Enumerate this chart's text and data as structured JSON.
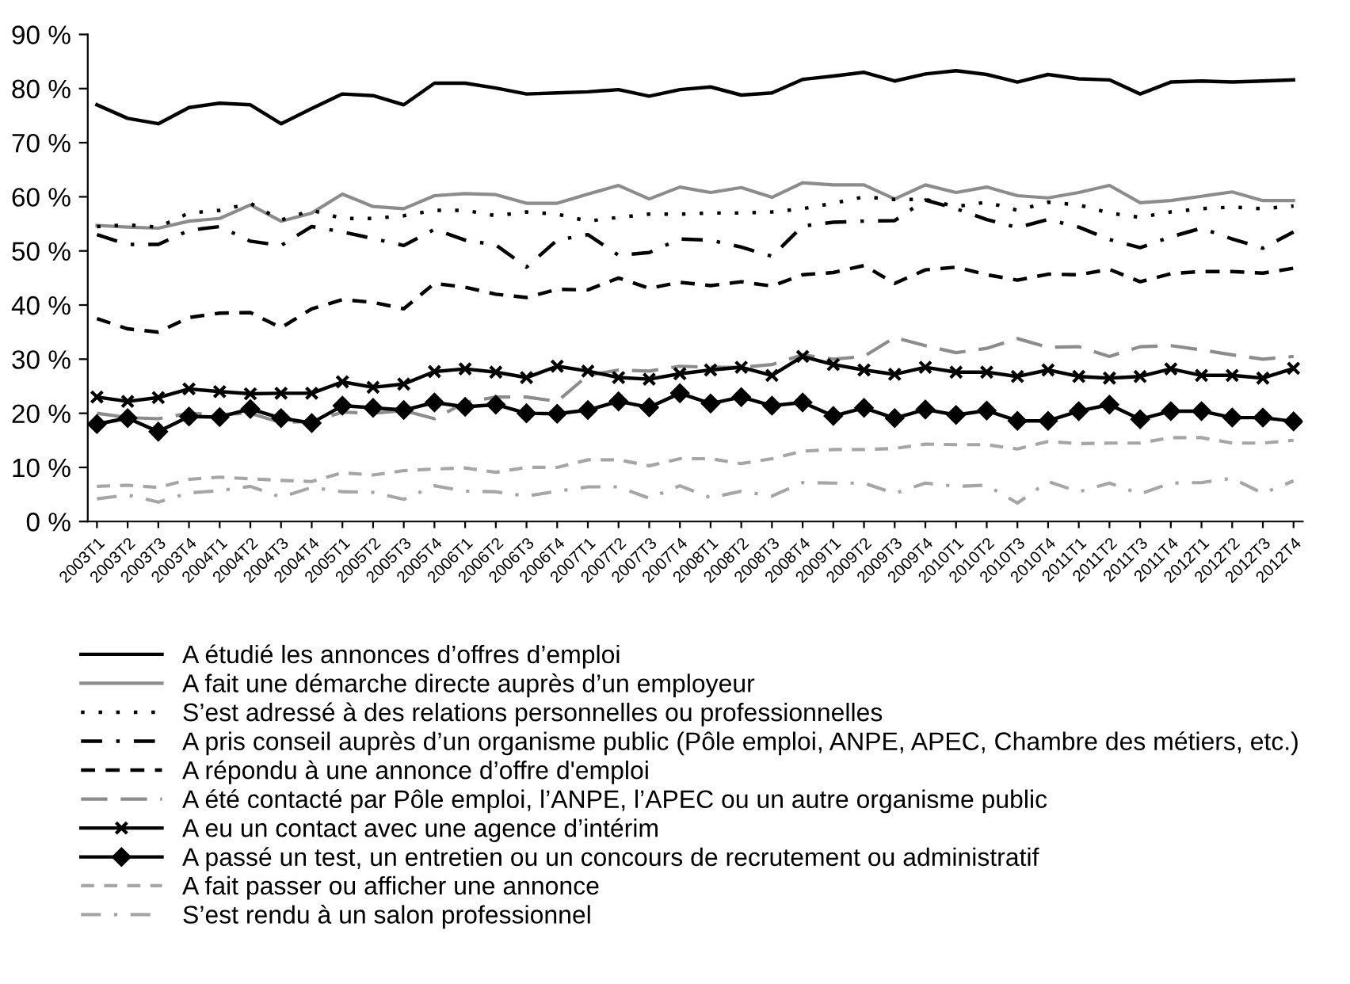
{
  "chart_data": {
    "type": "line",
    "categories": [
      "2003T1",
      "2003T2",
      "2003T3",
      "2003T4",
      "2004T1",
      "2004T2",
      "2004T3",
      "2004T4",
      "2005T1",
      "2005T2",
      "2005T3",
      "2005T4",
      "2006T1",
      "2006T2",
      "2006T3",
      "2006T4",
      "2007T1",
      "2007T2",
      "2007T3",
      "2007T4",
      "2008T1",
      "2008T2",
      "2008T3",
      "2008T4",
      "2009T1",
      "2009T2",
      "2009T3",
      "2009T4",
      "2010T1",
      "2010T2",
      "2010T3",
      "2010T4",
      "2011T1",
      "2011T2",
      "2011T3",
      "2011T4",
      "2012T1",
      "2012T2",
      "2012T3",
      "2012T4"
    ],
    "ylim": [
      0,
      90
    ],
    "yticks": [
      {
        "value": 0,
        "label": "0 %"
      },
      {
        "value": 10,
        "label": "10 %"
      },
      {
        "value": 20,
        "label": "20 %"
      },
      {
        "value": 30,
        "label": "30 %"
      },
      {
        "value": 40,
        "label": "40 %"
      },
      {
        "value": 50,
        "label": "50 %"
      },
      {
        "value": 60,
        "label": "60 %"
      },
      {
        "value": 70,
        "label": "70 %"
      },
      {
        "value": 80,
        "label": "80 %"
      },
      {
        "value": 90,
        "label": "90 %"
      }
    ],
    "grid": false,
    "legend": "bottom",
    "marker": "none",
    "series": [
      {
        "name": "A étudié les annonces d’offres d’emploi",
        "color": "#000000",
        "line_style": "solid",
        "values": [
          77,
          74.5,
          73.5,
          76.5,
          77.3,
          77,
          73.5,
          76.3,
          79,
          78.7,
          77,
          81,
          81,
          80.1,
          79,
          79.2,
          79.4,
          79.8,
          78.6,
          79.8,
          80.3,
          78.8,
          79.2,
          81.7,
          82.3,
          83,
          81.4,
          82.7,
          83.3,
          82.6,
          81.2,
          82.6,
          81.8,
          81.6,
          79,
          81.2,
          81.4,
          81.2,
          81.4,
          81.6
        ]
      },
      {
        "name": "A fait une démarche directe auprès d’un employeur",
        "color": "#8c8c8c",
        "line_style": "solid",
        "values": [
          54.7,
          54.4,
          54.2,
          55.5,
          56,
          58.5,
          55.5,
          57,
          60.5,
          58.2,
          57.8,
          60.2,
          60.6,
          60.4,
          58.8,
          58.8,
          60.5,
          62.1,
          59.6,
          61.8,
          60.8,
          61.7,
          59.9,
          62.6,
          62.2,
          62.2,
          59.6,
          62.2,
          60.8,
          61.8,
          60.2,
          59.8,
          60.8,
          62.1,
          58.9,
          59.3,
          60.1,
          60.9,
          59.3,
          59.3
        ]
      },
      {
        "name": "S’est adressé à des relations personnelles ou professionnelles",
        "color": "#000000",
        "line_style": "dotted",
        "values": [
          54.5,
          54.8,
          54.4,
          57,
          57.5,
          58.8,
          55.7,
          57.5,
          56,
          56,
          56.5,
          57.5,
          57.5,
          56.5,
          57.2,
          56.8,
          55.5,
          56.2,
          56.8,
          56.8,
          57,
          57,
          57.2,
          57.8,
          58.8,
          60,
          59.5,
          59.5,
          58.2,
          59,
          57.5,
          59,
          58.5,
          57,
          56.2,
          57.2,
          57.8,
          58.1,
          57.8,
          58.3
        ]
      },
      {
        "name": "A pris conseil auprès d’un organisme public (Pôle emploi, ANPE, APEC, Chambre des métiers, etc.)",
        "color": "#000000",
        "line_style": "dashdot",
        "values": [
          53,
          51.2,
          51.2,
          53.8,
          54.5,
          51.8,
          51,
          54.5,
          53.5,
          52.3,
          51,
          54,
          52,
          51.1,
          47,
          52,
          53,
          49.2,
          49.7,
          52.2,
          52,
          50.7,
          49,
          54.6,
          55.3,
          55.5,
          55.6,
          59.4,
          57.8,
          55.8,
          54.3,
          55.8,
          54.4,
          52.1,
          50.6,
          52.6,
          54.2,
          52.2,
          50.5,
          53.5
        ]
      },
      {
        "name": "A répondu à une annonce d’offre d'emploi",
        "color": "#000000",
        "line_style": "dashed",
        "values": [
          37.5,
          35.6,
          35,
          37.7,
          38.5,
          38.6,
          35.8,
          39.3,
          41,
          40.5,
          39.3,
          44,
          43.3,
          42,
          41.4,
          42.9,
          42.8,
          45,
          43.1,
          44.2,
          43.6,
          44.3,
          43.5,
          45.6,
          46,
          47.3,
          44,
          46.5,
          47,
          45.6,
          44.6,
          45.7,
          45.6,
          46.6,
          44.3,
          45.8,
          46.2,
          46.2,
          45.9,
          46.8
        ]
      },
      {
        "name": "A été contacté par Pôle emploi, l’ANPE, l’APEC ou un autre organisme public",
        "color": "#8c8c8c",
        "line_style": "longdash",
        "values": [
          20,
          19.2,
          19,
          20,
          19.8,
          20,
          18.3,
          18.5,
          20.2,
          20,
          20.5,
          19,
          22,
          23,
          23,
          22.2,
          27,
          28,
          27.8,
          28.7,
          28.5,
          28.5,
          29,
          30.8,
          30,
          30.5,
          34,
          32.5,
          31.2,
          32,
          33.8,
          32.2,
          32.3,
          30.5,
          32.3,
          32.5,
          31.7,
          30.8,
          30,
          30.5
        ]
      },
      {
        "name": "A eu un contact avec une agence d’intérim",
        "color": "#000000",
        "line_style": "solid",
        "marker": "cross",
        "values": [
          23,
          22.2,
          22.9,
          24.5,
          24,
          23.6,
          23.7,
          23.7,
          25.8,
          24.8,
          25.4,
          27.7,
          28.2,
          27.6,
          26.6,
          28.7,
          27.8,
          26.6,
          26.3,
          27.3,
          28,
          28.5,
          27,
          30.5,
          29,
          28,
          27.2,
          28.5,
          27.6,
          27.6,
          26.8,
          28,
          26.8,
          26.5,
          26.8,
          28.2,
          27,
          27,
          26.5,
          28.3
        ]
      },
      {
        "name": "A passé un test, un entretien ou un concours de recrutement ou administratif",
        "color": "#000000",
        "line_style": "solid",
        "marker": "diamond",
        "values": [
          18,
          19.1,
          16.6,
          19.4,
          19.3,
          20.8,
          19.1,
          18.2,
          21.4,
          21,
          20.6,
          22,
          21.2,
          21.6,
          20,
          19.9,
          20.6,
          22.2,
          21.1,
          23.7,
          21.8,
          23,
          21.4,
          22,
          19.5,
          21,
          19.1,
          20.7,
          19.7,
          20.5,
          18.6,
          18.6,
          20.4,
          21.6,
          18.9,
          20.4,
          20.4,
          19.2,
          19.2,
          18.5
        ]
      },
      {
        "name": "A fait passer ou afficher une annonce",
        "color": "#a6a6a6",
        "line_style": "dashed",
        "values": [
          6.5,
          6.7,
          6.3,
          7.8,
          8.2,
          7.9,
          7.6,
          7.4,
          9,
          8.6,
          9.4,
          9.7,
          9.9,
          9.1,
          10,
          10,
          11.4,
          11.4,
          10.3,
          11.6,
          11.6,
          10.7,
          11.6,
          13,
          13.3,
          13.3,
          13.5,
          14.3,
          14.2,
          14.2,
          13.4,
          14.8,
          14.4,
          14.5,
          14.5,
          15.5,
          15.5,
          14.5,
          14.5,
          15
        ]
      },
      {
        "name": "S’est rendu à un salon professionnel",
        "color": "#a6a6a6",
        "line_style": "dashdot",
        "values": [
          4.2,
          4.9,
          3.6,
          5.3,
          5.7,
          6.5,
          4.5,
          6.3,
          5.5,
          5.4,
          4.1,
          6.6,
          5.6,
          5.5,
          4.7,
          5.6,
          6.4,
          6.4,
          4.3,
          6.6,
          4.4,
          5.6,
          4.7,
          7.2,
          7.1,
          7.1,
          5.2,
          7.1,
          6.5,
          6.7,
          3.4,
          7.4,
          5.5,
          7.1,
          5.1,
          7.1,
          7.2,
          8,
          5.2,
          7.5
        ]
      }
    ]
  }
}
